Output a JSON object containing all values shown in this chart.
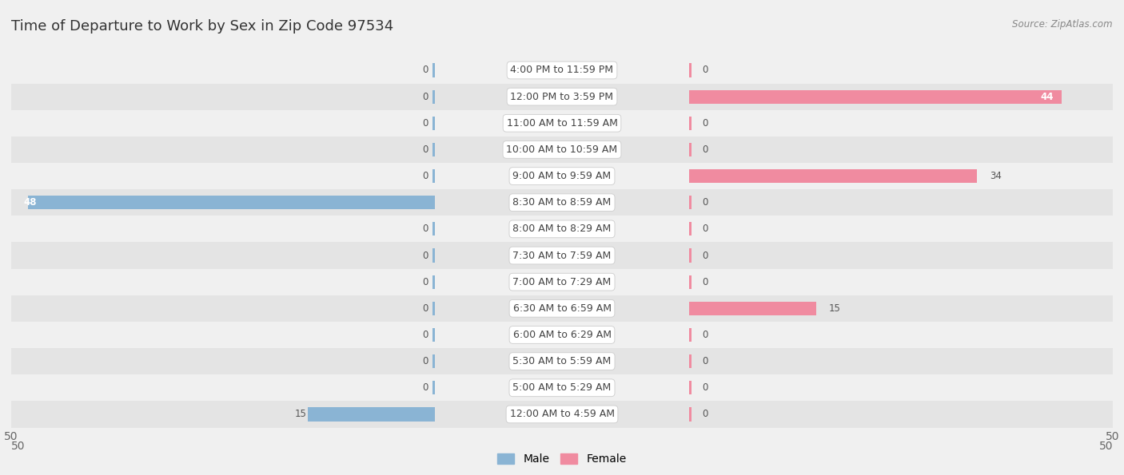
{
  "title": "Time of Departure to Work by Sex in Zip Code 97534",
  "source": "Source: ZipAtlas.com",
  "categories": [
    "12:00 AM to 4:59 AM",
    "5:00 AM to 5:29 AM",
    "5:30 AM to 5:59 AM",
    "6:00 AM to 6:29 AM",
    "6:30 AM to 6:59 AM",
    "7:00 AM to 7:29 AM",
    "7:30 AM to 7:59 AM",
    "8:00 AM to 8:29 AM",
    "8:30 AM to 8:59 AM",
    "9:00 AM to 9:59 AM",
    "10:00 AM to 10:59 AM",
    "11:00 AM to 11:59 AM",
    "12:00 PM to 3:59 PM",
    "4:00 PM to 11:59 PM"
  ],
  "male_values": [
    15,
    0,
    0,
    0,
    0,
    0,
    0,
    0,
    48,
    0,
    0,
    0,
    0,
    0
  ],
  "female_values": [
    0,
    0,
    0,
    0,
    15,
    0,
    0,
    0,
    0,
    34,
    0,
    0,
    44,
    0
  ],
  "male_color": "#8ab4d4",
  "female_color": "#f08ba0",
  "max_val": 50,
  "bg_color": "#f0f0f0",
  "row_odd_color": "#f0f0f0",
  "row_even_color": "#e4e4e4",
  "title_color": "#333333",
  "source_color": "#888888",
  "zero_bar_width": 4,
  "cat_label_fontsize": 9.0,
  "title_fontsize": 13,
  "value_fontsize": 8.5,
  "axis_fontsize": 10,
  "legend_fontsize": 10
}
